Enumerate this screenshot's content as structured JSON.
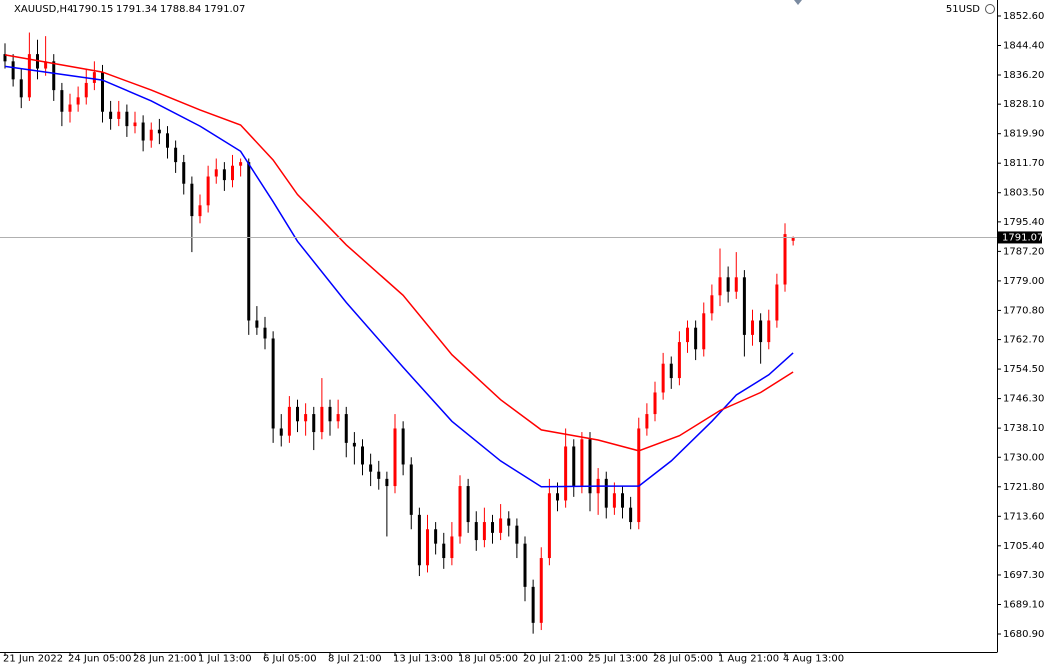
{
  "chart_data": {
    "type": "candlestick",
    "symbol": "XAUUSD,H4",
    "account": "51USD",
    "bull_color": "#ff0000",
    "bear_color": "#000000",
    "xlim": [
      -0.615,
      122.09
    ],
    "ylim": [
      1675.9,
      1857.04
    ],
    "yticks": [
      {
        "value": 1852.6,
        "label": "1852.60"
      },
      {
        "value": 1844.4,
        "label": "1844.40"
      },
      {
        "value": 1836.2,
        "label": "1836.20"
      },
      {
        "value": 1828.1,
        "label": "1828.10"
      },
      {
        "value": 1819.9,
        "label": "1819.90"
      },
      {
        "value": 1811.7,
        "label": "1811.70"
      },
      {
        "value": 1803.5,
        "label": "1803.50"
      },
      {
        "value": 1795.4,
        "label": "1795.40"
      },
      {
        "value": 1787.2,
        "label": "1787.20"
      },
      {
        "value": 1779,
        "label": "1779.00"
      },
      {
        "value": 1770.8,
        "label": "1770.80"
      },
      {
        "value": 1762.7,
        "label": "1762.70"
      },
      {
        "value": 1754.5,
        "label": "1754.50"
      },
      {
        "value": 1746.3,
        "label": "1746.30"
      },
      {
        "value": 1738.1,
        "label": "1738.10"
      },
      {
        "value": 1730,
        "label": "1730.00"
      },
      {
        "value": 1721.8,
        "label": "1721.80"
      },
      {
        "value": 1713.6,
        "label": "1713.60"
      },
      {
        "value": 1705.4,
        "label": "1705.40"
      },
      {
        "value": 1697.3,
        "label": "1697.30"
      },
      {
        "value": 1689.1,
        "label": "1689.10"
      },
      {
        "value": 1680.9,
        "label": "1680.90"
      }
    ],
    "xticks": [
      {
        "value": 0,
        "label": "21 Jun 2022"
      },
      {
        "value": 8,
        "label": "24 Jun 05:00"
      },
      {
        "value": 16,
        "label": "28 Jun 21:00"
      },
      {
        "value": 24,
        "label": "1 Jul 13:00"
      },
      {
        "value": 32,
        "label": "6 Jul 05:00"
      },
      {
        "value": 40,
        "label": "8 Jul 21:00"
      },
      {
        "value": 48,
        "label": "13 Jul 13:00"
      },
      {
        "value": 56,
        "label": "18 Jul 05:00"
      },
      {
        "value": 64,
        "label": "20 Jul 21:00"
      },
      {
        "value": 72,
        "label": "25 Jul 13:00"
      },
      {
        "value": 80,
        "label": "28 Jul 05:00"
      },
      {
        "value": 88,
        "label": "1 Aug 21:00"
      },
      {
        "value": 96,
        "label": "4 Aug 13:00"
      }
    ],
    "candles": [
      [
        1842,
        1845,
        1838,
        1840
      ],
      [
        1840,
        1842,
        1833,
        1835
      ],
      [
        1835,
        1838,
        1827,
        1830
      ],
      [
        1830,
        1848,
        1829,
        1842
      ],
      [
        1842,
        1846,
        1835,
        1838
      ],
      [
        1838,
        1847,
        1836,
        1840
      ],
      [
        1840,
        1842,
        1829,
        1832
      ],
      [
        1832,
        1834,
        1822,
        1826
      ],
      [
        1826,
        1831,
        1823,
        1828
      ],
      [
        1828,
        1833,
        1826,
        1830
      ],
      [
        1830,
        1838,
        1828,
        1834
      ],
      [
        1834,
        1840,
        1832,
        1837
      ],
      [
        1837,
        1839,
        1823,
        1826
      ],
      [
        1826,
        1829,
        1821,
        1824
      ],
      [
        1824,
        1829,
        1822,
        1826
      ],
      [
        1826,
        1828,
        1819,
        1822
      ],
      [
        1822,
        1826,
        1820,
        1823
      ],
      [
        1823,
        1825,
        1815,
        1818
      ],
      [
        1818,
        1823,
        1816,
        1821
      ],
      [
        1821,
        1824,
        1817,
        1820
      ],
      [
        1820,
        1822,
        1813,
        1816
      ],
      [
        1816,
        1818,
        1809,
        1812
      ],
      [
        1812,
        1814,
        1803,
        1806
      ],
      [
        1806,
        1808,
        1787,
        1797
      ],
      [
        1797,
        1803,
        1795,
        1800
      ],
      [
        1800,
        1811,
        1798,
        1808
      ],
      [
        1808,
        1813,
        1806,
        1810
      ],
      [
        1810,
        1812,
        1804,
        1807
      ],
      [
        1807,
        1814,
        1805,
        1811
      ],
      [
        1811,
        1813,
        1808,
        1812
      ],
      [
        1812,
        1813,
        1764,
        1768
      ],
      [
        1768,
        1772,
        1764,
        1766
      ],
      [
        1766,
        1769,
        1760,
        1763
      ],
      [
        1763,
        1765,
        1734,
        1738
      ],
      [
        1738,
        1742,
        1733,
        1736
      ],
      [
        1736,
        1747,
        1734,
        1744
      ],
      [
        1744,
        1746,
        1737,
        1740
      ],
      [
        1740,
        1745,
        1736,
        1742
      ],
      [
        1742,
        1744,
        1732,
        1737
      ],
      [
        1737,
        1752,
        1735,
        1744
      ],
      [
        1744,
        1746,
        1736,
        1740
      ],
      [
        1740,
        1746,
        1738,
        1742
      ],
      [
        1742,
        1744,
        1730,
        1734
      ],
      [
        1734,
        1737,
        1728,
        1733
      ],
      [
        1733,
        1735,
        1725,
        1728
      ],
      [
        1728,
        1731,
        1722,
        1726
      ],
      [
        1726,
        1729,
        1721,
        1724
      ],
      [
        1724,
        1726,
        1708,
        1722
      ],
      [
        1722,
        1742,
        1720,
        1738
      ],
      [
        1738,
        1740,
        1725,
        1728
      ],
      [
        1728,
        1730,
        1710,
        1714
      ],
      [
        1714,
        1716,
        1697,
        1700
      ],
      [
        1700,
        1714,
        1698,
        1710
      ],
      [
        1710,
        1712,
        1703,
        1706
      ],
      [
        1706,
        1709,
        1699,
        1702
      ],
      [
        1702,
        1712,
        1700,
        1708
      ],
      [
        1708,
        1725,
        1706,
        1722
      ],
      [
        1722,
        1724,
        1709,
        1712
      ],
      [
        1712,
        1715,
        1704,
        1707
      ],
      [
        1707,
        1716,
        1705,
        1712
      ],
      [
        1712,
        1714,
        1706,
        1709
      ],
      [
        1709,
        1717,
        1707,
        1713
      ],
      [
        1713,
        1715,
        1708,
        1711
      ],
      [
        1711,
        1713,
        1702,
        1706
      ],
      [
        1706,
        1708,
        1690,
        1694
      ],
      [
        1694,
        1696,
        1681,
        1684
      ],
      [
        1684,
        1705,
        1682,
        1702
      ],
      [
        1702,
        1724,
        1700,
        1720
      ],
      [
        1720,
        1723,
        1715,
        1718
      ],
      [
        1718,
        1738,
        1716,
        1733
      ],
      [
        1733,
        1735,
        1719,
        1722
      ],
      [
        1722,
        1737,
        1720,
        1735
      ],
      [
        1735,
        1737,
        1715,
        1720
      ],
      [
        1720,
        1727,
        1714,
        1724
      ],
      [
        1724,
        1726,
        1713,
        1716
      ],
      [
        1716,
        1723,
        1714,
        1720
      ],
      [
        1720,
        1722,
        1713,
        1716
      ],
      [
        1716,
        1719,
        1710,
        1712
      ],
      [
        1712,
        1741,
        1710,
        1738
      ],
      [
        1738,
        1745,
        1736,
        1742
      ],
      [
        1742,
        1751,
        1740,
        1748
      ],
      [
        1748,
        1759,
        1746,
        1756
      ],
      [
        1756,
        1758,
        1749,
        1752
      ],
      [
        1752,
        1765,
        1750,
        1762
      ],
      [
        1762,
        1768,
        1759,
        1766
      ],
      [
        1766,
        1768,
        1757,
        1760
      ],
      [
        1760,
        1773,
        1758,
        1770
      ],
      [
        1770,
        1778,
        1768,
        1775
      ],
      [
        1775,
        1788,
        1772,
        1780
      ],
      [
        1780,
        1783,
        1773,
        1776
      ],
      [
        1776,
        1787,
        1774,
        1780
      ],
      [
        1780,
        1782,
        1758,
        1764
      ],
      [
        1764,
        1771,
        1761,
        1768
      ],
      [
        1768,
        1770,
        1756,
        1762
      ],
      [
        1762,
        1771,
        1760,
        1768
      ],
      [
        1768,
        1781,
        1766,
        1778
      ],
      [
        1778,
        1795,
        1776,
        1792
      ],
      [
        1790.15,
        1791.34,
        1788.84,
        1791.07
      ]
    ],
    "lines": [
      {
        "color": "#0000ff",
        "x": [
          0,
          12,
          18,
          24,
          29,
          33,
          36,
          42,
          49,
          55,
          61,
          66,
          73,
          78,
          82,
          87,
          90,
          94,
          97
        ],
        "values": [
          1838.6,
          1834.8,
          1829,
          1822,
          1815,
          1801,
          1790,
          1773,
          1755,
          1740,
          1729,
          1721.8,
          1722,
          1722,
          1729,
          1740,
          1747.3,
          1752.9,
          1759
        ]
      },
      {
        "color": "#ff0000",
        "x": [
          0,
          12,
          18,
          24,
          29,
          33,
          36,
          42,
          49,
          55,
          61,
          66,
          73,
          78,
          83,
          88,
          93,
          97
        ],
        "values": [
          1841.8,
          1837,
          1832,
          1826.5,
          1822.3,
          1812.6,
          1803,
          1789,
          1775,
          1758.5,
          1746,
          1737.6,
          1734.8,
          1731.8,
          1736,
          1743,
          1748,
          1753.7
        ]
      }
    ]
  }
}
